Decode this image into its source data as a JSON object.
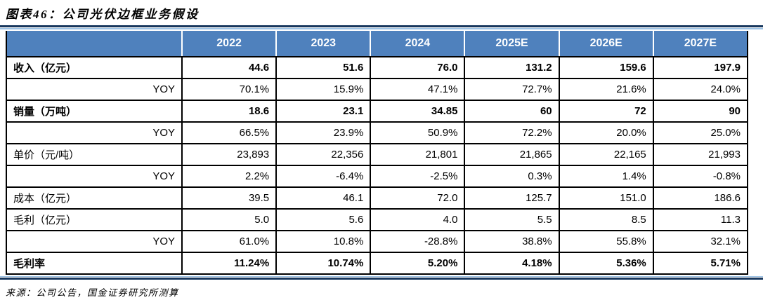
{
  "title": "图表46：公司光伏边框业务假设",
  "source_note": "来源：公司公告，国金证券研究所测算",
  "colors": {
    "header_bg": "#4F81BD",
    "header_text": "#FFFFFF",
    "rule_dark": "#17375E",
    "rule_light": "#9DC3E6",
    "table_border": "#000000"
  },
  "chart_data": {
    "type": "table",
    "title": "图表46：公司光伏边框业务假设",
    "columns": [
      "",
      "2022",
      "2023",
      "2024",
      "2025E",
      "2026E",
      "2027E"
    ],
    "rows": [
      {
        "label": "收入（亿元）",
        "bold": true,
        "values": [
          "44.6",
          "51.6",
          "76.0",
          "131.2",
          "159.6",
          "197.9"
        ]
      },
      {
        "label": "YOY",
        "bold": false,
        "values": [
          "70.1%",
          "15.9%",
          "47.1%",
          "72.7%",
          "21.6%",
          "24.0%"
        ]
      },
      {
        "label": "销量（万吨）",
        "bold": true,
        "values": [
          "18.6",
          "23.1",
          "34.85",
          "60",
          "72",
          "90"
        ]
      },
      {
        "label": "YOY",
        "bold": false,
        "values": [
          "66.5%",
          "23.9%",
          "50.9%",
          "72.2%",
          "20.0%",
          "25.0%"
        ]
      },
      {
        "label": "单价（元/吨）",
        "bold": false,
        "values": [
          "23,893",
          "22,356",
          "21,801",
          "21,865",
          "22,165",
          "21,993"
        ]
      },
      {
        "label": "YOY",
        "bold": false,
        "values": [
          "2.2%",
          "-6.4%",
          "-2.5%",
          "0.3%",
          "1.4%",
          "-0.8%"
        ]
      },
      {
        "label": "成本（亿元）",
        "bold": false,
        "values": [
          "39.5",
          "46.1",
          "72.0",
          "125.7",
          "151.0",
          "186.6"
        ]
      },
      {
        "label": "毛利（亿元）",
        "bold": false,
        "values": [
          "5.0",
          "5.6",
          "4.0",
          "5.5",
          "8.5",
          "11.3"
        ]
      },
      {
        "label": "YOY",
        "bold": false,
        "values": [
          "61.0%",
          "10.8%",
          "-28.8%",
          "38.8%",
          "55.8%",
          "32.1%"
        ]
      },
      {
        "label": "毛利率",
        "bold": true,
        "values": [
          "11.24%",
          "10.74%",
          "5.20%",
          "4.18%",
          "5.36%",
          "5.71%"
        ]
      }
    ]
  }
}
